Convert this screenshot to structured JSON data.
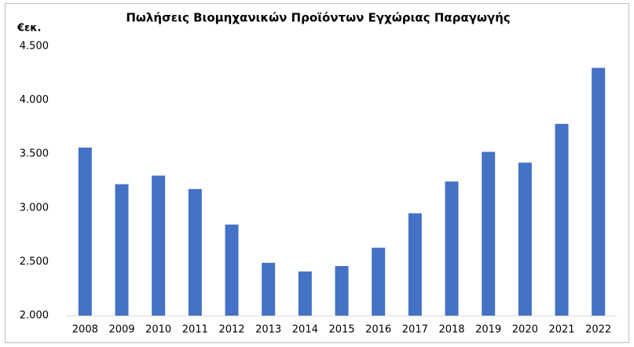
{
  "chart_data": {
    "type": "bar",
    "title": "Πωλήσεις Βιομηχανικών Προϊόντων Εγχώριας Παραγωγής",
    "y_label": "€εκ.",
    "categories": [
      "2008",
      "2009",
      "2010",
      "2011",
      "2012",
      "2013",
      "2014",
      "2015",
      "2016",
      "2017",
      "2018",
      "2019",
      "2020",
      "2021",
      "2022"
    ],
    "values": [
      3560,
      3220,
      3300,
      3175,
      2845,
      2490,
      2410,
      2460,
      2630,
      2950,
      3245,
      3520,
      3420,
      3780,
      4300
    ],
    "color": "#4472c4",
    "ylim": [
      2000,
      4500
    ],
    "yticks": [
      {
        "value": 2000,
        "label": "2.000"
      },
      {
        "value": 2500,
        "label": "2.500"
      },
      {
        "value": 3000,
        "label": "3.000"
      },
      {
        "value": 3500,
        "label": "3.500"
      },
      {
        "value": 4000,
        "label": "4.000"
      },
      {
        "value": 4500,
        "label": "4.500"
      }
    ],
    "grid": false
  }
}
